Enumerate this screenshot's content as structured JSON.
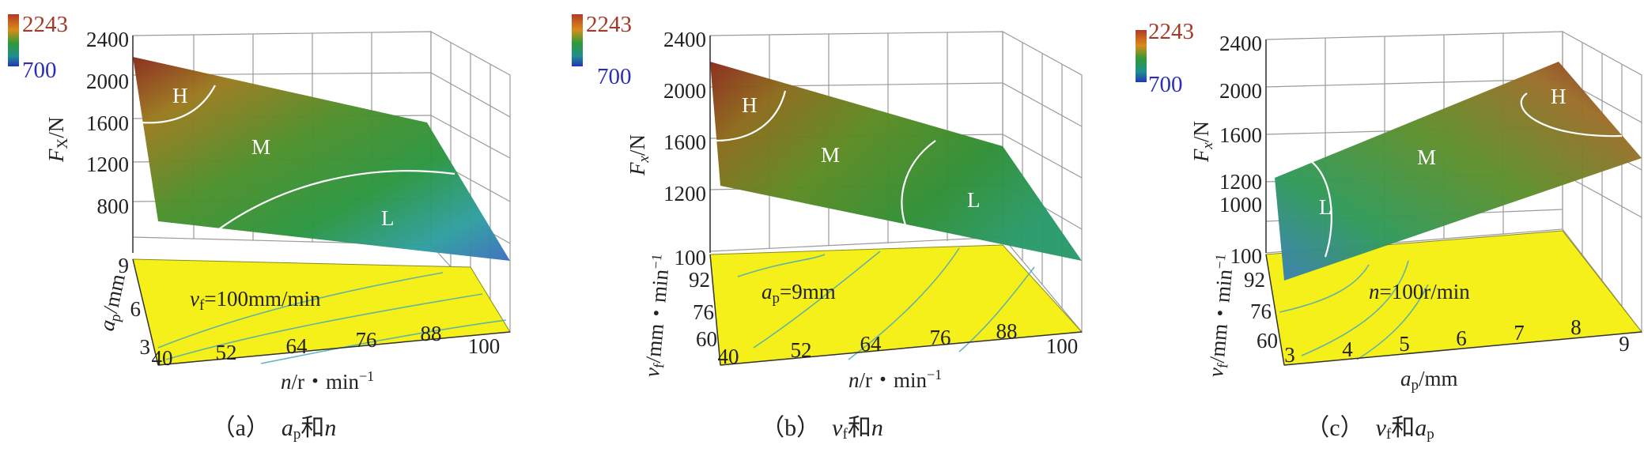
{
  "colorbar": {
    "max": "2243",
    "min": "700",
    "max_color": "#a33a28",
    "min_color": "#2b2fb6"
  },
  "chart_data": [
    {
      "type": "surface",
      "panel": "a",
      "caption": {
        "prefix": "（a）",
        "var1": "a",
        "var1_sub": "p",
        "joiner": "和",
        "var2": "n",
        "var2_sub": ""
      },
      "zlabel": {
        "main": "F",
        "sub": "X",
        "unit": "/N"
      },
      "zticks": [
        "2400",
        "2000",
        "1600",
        "1200",
        "800"
      ],
      "xlabel": {
        "main": "n",
        "rest": "/r・min",
        "sup": "−1"
      },
      "xticks": [
        "40",
        "52",
        "64",
        "76",
        "88",
        "100"
      ],
      "ylabel": {
        "main": "a",
        "sub": "p",
        "rest": "/mm"
      },
      "yticks": [
        "9",
        "6",
        "3"
      ],
      "fixed": {
        "main": "v",
        "sub": "f",
        "rest": "=100mm/min"
      },
      "zones": [
        "H",
        "M",
        "L"
      ]
    },
    {
      "type": "surface",
      "panel": "b",
      "caption": {
        "prefix": "（b）",
        "var1": "v",
        "var1_sub": "f",
        "joiner": "和",
        "var2": "n",
        "var2_sub": ""
      },
      "zlabel": {
        "main": "F",
        "sub": "x",
        "unit": "/N"
      },
      "zticks": [
        "2400",
        "2000",
        "1600",
        "1200"
      ],
      "xlabel": {
        "main": "n",
        "rest": "/r・min",
        "sup": "−1"
      },
      "xticks": [
        "40",
        "52",
        "64",
        "76",
        "88",
        "100"
      ],
      "ylabel": {
        "main": "v",
        "sub": "f",
        "rest": "/mm・min",
        "sup": "−1"
      },
      "yticks": [
        "100",
        "92",
        "76",
        "60"
      ],
      "fixed": {
        "main": "a",
        "sub": "p",
        "rest": "=9mm"
      },
      "zones": [
        "H",
        "M",
        "L"
      ]
    },
    {
      "type": "surface",
      "panel": "c",
      "caption": {
        "prefix": "（c）",
        "var1": "v",
        "var1_sub": "f",
        "joiner": "和",
        "var2": "a",
        "var2_sub": "p"
      },
      "zlabel": {
        "main": "F",
        "sub": "x",
        "unit": "/N"
      },
      "zticks": [
        "2400",
        "2000",
        "1600",
        "1200",
        "1000"
      ],
      "xlabel": {
        "main": "a",
        "sub": "p",
        "rest": "/mm"
      },
      "xticks": [
        "3",
        "4",
        "5",
        "6",
        "7",
        "8",
        "9"
      ],
      "ylabel": {
        "main": "v",
        "sub": "f",
        "rest": "/mm・min",
        "sup": "−1"
      },
      "yticks": [
        "100",
        "92",
        "76",
        "60"
      ],
      "fixed": {
        "main": "n",
        "rest": "=100r/min"
      },
      "zones": [
        "H",
        "M",
        "L"
      ]
    }
  ]
}
